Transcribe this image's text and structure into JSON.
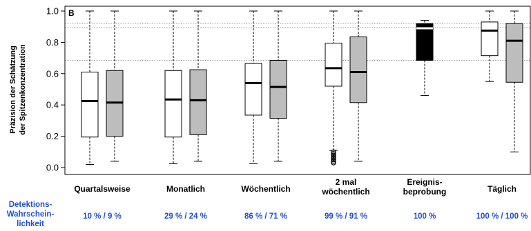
{
  "chart_data": {
    "type": "boxplot",
    "panel_label": "B",
    "ylabel_lines": [
      "Präzision der Schätzung",
      "der Spitzenkonzentration"
    ],
    "ylim": [
      0.0,
      1.0
    ],
    "yticks": [
      "0.0",
      "0.2",
      "0.4",
      "0.6",
      "0.8",
      "1.0"
    ],
    "reference_lines": [
      0.92,
      0.895,
      0.685
    ],
    "categories": [
      {
        "label_lines": [
          "Quartalsweise"
        ],
        "detection": "10 % / 9 %"
      },
      {
        "label_lines": [
          "Monatlich"
        ],
        "detection": "29 % / 24 %"
      },
      {
        "label_lines": [
          "Wöchentlich"
        ],
        "detection": "86 % / 71 %"
      },
      {
        "label_lines": [
          "2 mal",
          "wöchentlich"
        ],
        "detection": "99 % / 91 %"
      },
      {
        "label_lines": [
          "Ereignis-",
          "beprobung"
        ],
        "detection": "100 %"
      },
      {
        "label_lines": [
          "Täglich"
        ],
        "detection": "100 % / 100 %"
      }
    ],
    "detection_label_lines": [
      "Detektions-",
      "Wahrschein-",
      "lichkeit"
    ],
    "colors": {
      "white_box": "#ffffff",
      "gray_box": "#bdbdbd",
      "black_box": "#000000",
      "detection_text": "#1f4fd8"
    },
    "boxes": [
      {
        "category": 0,
        "fill": "white",
        "whisker_low": 0.02,
        "q1": 0.195,
        "median": 0.425,
        "q3": 0.61,
        "whisker_high": 1.0
      },
      {
        "category": 0,
        "fill": "gray",
        "whisker_low": 0.04,
        "q1": 0.2,
        "median": 0.415,
        "q3": 0.62,
        "whisker_high": 1.0
      },
      {
        "category": 1,
        "fill": "white",
        "whisker_low": 0.025,
        "q1": 0.195,
        "median": 0.435,
        "q3": 0.62,
        "whisker_high": 1.0
      },
      {
        "category": 1,
        "fill": "gray",
        "whisker_low": 0.04,
        "q1": 0.21,
        "median": 0.43,
        "q3": 0.625,
        "whisker_high": 1.0
      },
      {
        "category": 2,
        "fill": "white",
        "whisker_low": 0.025,
        "q1": 0.335,
        "median": 0.54,
        "q3": 0.665,
        "whisker_high": 1.0
      },
      {
        "category": 2,
        "fill": "gray",
        "whisker_low": 0.04,
        "q1": 0.315,
        "median": 0.515,
        "q3": 0.685,
        "whisker_high": 1.0
      },
      {
        "category": 3,
        "fill": "white",
        "whisker_low": 0.11,
        "q1": 0.52,
        "median": 0.635,
        "q3": 0.795,
        "whisker_high": 1.0,
        "outliers": [
          0.1,
          0.09,
          0.08,
          0.07,
          0.06,
          0.05,
          0.04,
          0.03
        ]
      },
      {
        "category": 3,
        "fill": "gray",
        "whisker_low": 0.04,
        "q1": 0.415,
        "median": 0.61,
        "q3": 0.835,
        "whisker_high": 1.0
      },
      {
        "category": 4,
        "fill": "black",
        "whisker_low": 0.46,
        "q1": 0.685,
        "median": 0.89,
        "q3": 0.92,
        "whisker_high": 0.94
      },
      {
        "category": 5,
        "fill": "white",
        "whisker_low": 0.55,
        "q1": 0.715,
        "median": 0.875,
        "q3": 0.93,
        "whisker_high": 1.0
      },
      {
        "category": 5,
        "fill": "gray",
        "whisker_low": 0.1,
        "q1": 0.545,
        "median": 0.81,
        "q3": 0.92,
        "whisker_high": 1.0
      }
    ]
  }
}
